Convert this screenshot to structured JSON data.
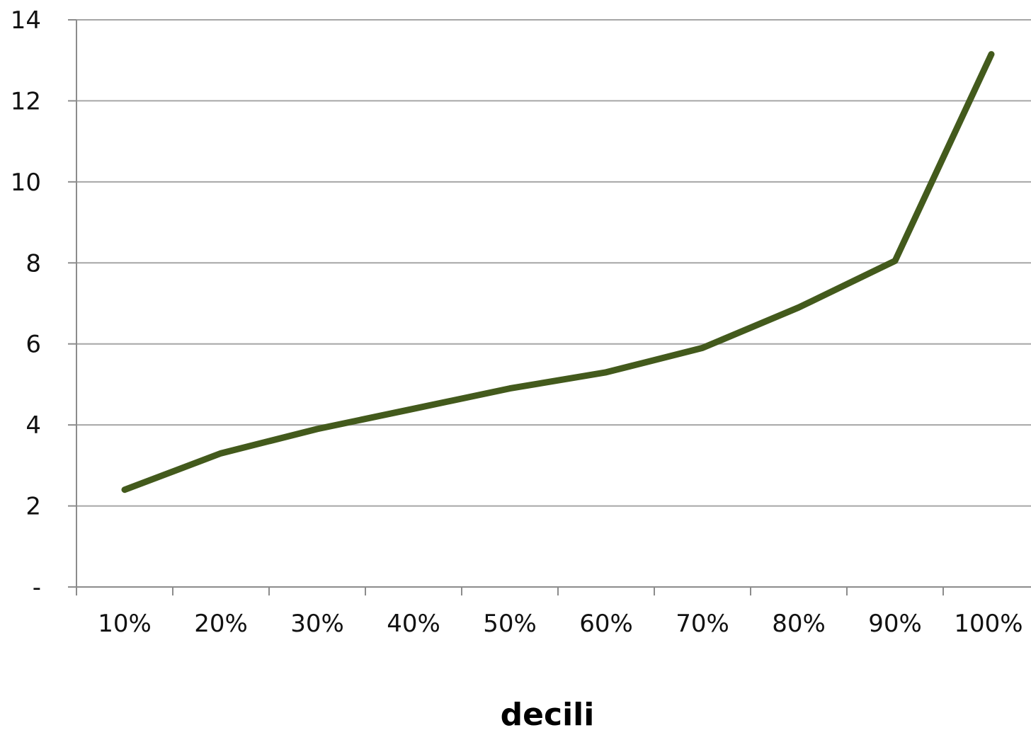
{
  "chart_data": {
    "type": "line",
    "title": "",
    "xlabel": "decili",
    "ylabel": "",
    "categories": [
      "10%",
      "20%",
      "30%",
      "40%",
      "50%",
      "60%",
      "70%",
      "80%",
      "90%",
      "100%"
    ],
    "series": [
      {
        "color": "#435a1c",
        "values": [
          2.4,
          3.3,
          3.9,
          4.4,
          4.9,
          5.3,
          5.9,
          6.9,
          8.05,
          13.15
        ]
      }
    ],
    "ylim": [
      0,
      14
    ],
    "yticks": [
      0,
      2,
      4,
      6,
      8,
      10,
      12,
      14
    ],
    "ytick_labels": [
      "-",
      "2",
      "4",
      "6",
      "8",
      "10",
      "12",
      "14"
    ],
    "grid": true,
    "gridline_color": "#a6a6a6",
    "axis_color": "#8c8c8c"
  }
}
